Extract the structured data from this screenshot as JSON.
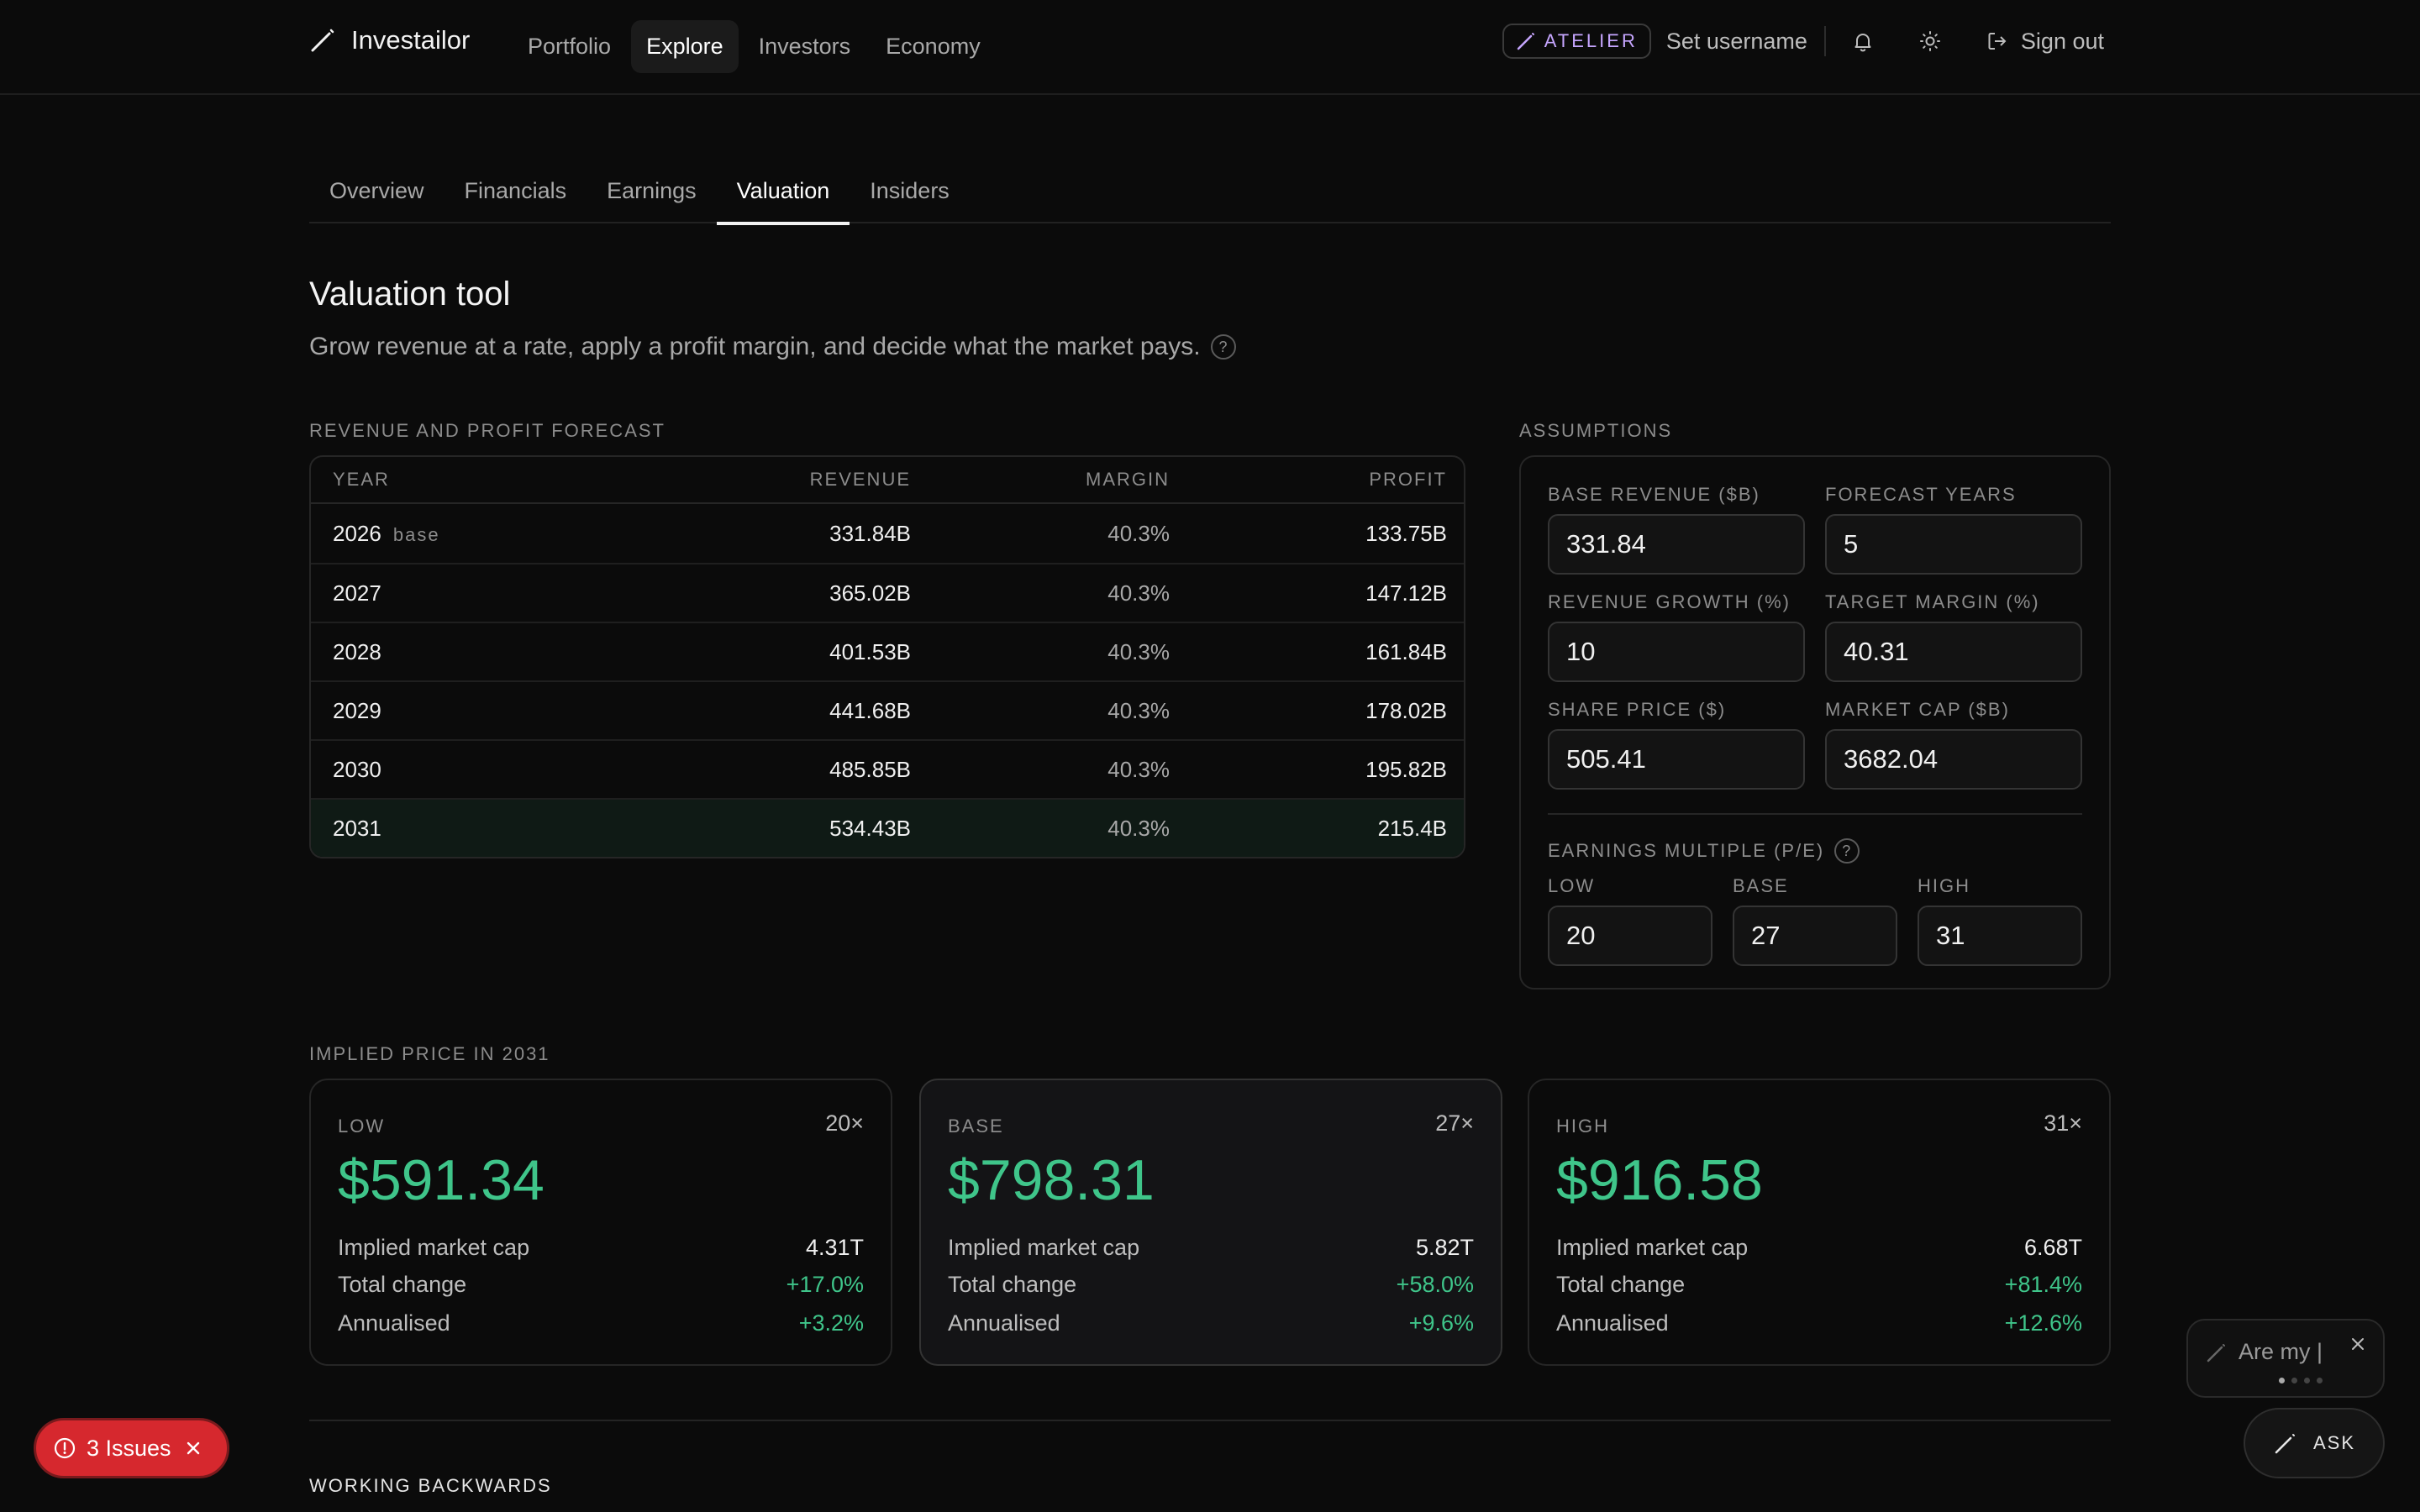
{
  "header": {
    "brand": "Investailor",
    "nav": [
      "Portfolio",
      "Explore",
      "Investors",
      "Economy"
    ],
    "active_nav": "Explore",
    "badge": "ATELIER",
    "username": "Set username",
    "signout": "Sign out"
  },
  "tabs": [
    "Overview",
    "Financials",
    "Earnings",
    "Valuation",
    "Insiders"
  ],
  "active_tab": "Valuation",
  "page": {
    "title": "Valuation tool",
    "subtitle": "Grow revenue at a rate, apply a profit margin, and decide what the market pays.",
    "help_glyph": "?"
  },
  "forecast": {
    "label": "REVENUE AND PROFIT FORECAST",
    "columns": [
      "YEAR",
      "REVENUE",
      "MARGIN",
      "PROFIT"
    ],
    "base_tag": "base",
    "rows": [
      {
        "year": "2026",
        "revenue": "331.84B",
        "margin": "40.3%",
        "profit": "133.75B"
      },
      {
        "year": "2027",
        "revenue": "365.02B",
        "margin": "40.3%",
        "profit": "147.12B"
      },
      {
        "year": "2028",
        "revenue": "401.53B",
        "margin": "40.3%",
        "profit": "161.84B"
      },
      {
        "year": "2029",
        "revenue": "441.68B",
        "margin": "40.3%",
        "profit": "178.02B"
      },
      {
        "year": "2030",
        "revenue": "485.85B",
        "margin": "40.3%",
        "profit": "195.82B"
      },
      {
        "year": "2031",
        "revenue": "534.43B",
        "margin": "40.3%",
        "profit": "215.4B"
      }
    ]
  },
  "assumptions": {
    "label": "ASSUMPTIONS",
    "base_revenue": {
      "label": "BASE REVENUE ($B)",
      "value": "331.84"
    },
    "forecast_years": {
      "label": "FORECAST YEARS",
      "value": "5"
    },
    "revenue_growth": {
      "label": "REVENUE GROWTH (%)",
      "value": "10"
    },
    "target_margin": {
      "label": "TARGET MARGIN (%)",
      "value": "40.31"
    },
    "share_price": {
      "label": "SHARE PRICE ($)",
      "value": "505.41"
    },
    "market_cap": {
      "label": "MARKET CAP ($B)",
      "value": "3682.04"
    },
    "pe_label": "EARNINGS MULTIPLE (P/E)",
    "pe_low": {
      "label": "LOW",
      "value": "20"
    },
    "pe_base": {
      "label": "BASE",
      "value": "27"
    },
    "pe_high": {
      "label": "HIGH",
      "value": "31"
    }
  },
  "implied": {
    "label": "IMPLIED PRICE IN 2031",
    "row_labels": {
      "market_cap": "Implied market cap",
      "total_change": "Total change",
      "annualised": "Annualised"
    },
    "cards": [
      {
        "name": "LOW",
        "multiple": "20×",
        "price": "$591.34",
        "market_cap": "4.31T",
        "total_change": "+17.0%",
        "annualised": "+3.2%"
      },
      {
        "name": "BASE",
        "multiple": "27×",
        "price": "$798.31",
        "market_cap": "5.82T",
        "total_change": "+58.0%",
        "annualised": "+9.6%"
      },
      {
        "name": "HIGH",
        "multiple": "31×",
        "price": "$916.58",
        "market_cap": "6.68T",
        "total_change": "+81.4%",
        "annualised": "+12.6%"
      }
    ]
  },
  "working_backwards": "WORKING BACKWARDS",
  "issues": {
    "label": "3 Issues"
  },
  "ask": {
    "preview": "Are my |",
    "button": "ASK"
  },
  "colors": {
    "accent_green": "#3fc58a",
    "issues_red": "#d6282e",
    "badge_purple": "#c6a6ff",
    "background": "#0b0b0b"
  }
}
